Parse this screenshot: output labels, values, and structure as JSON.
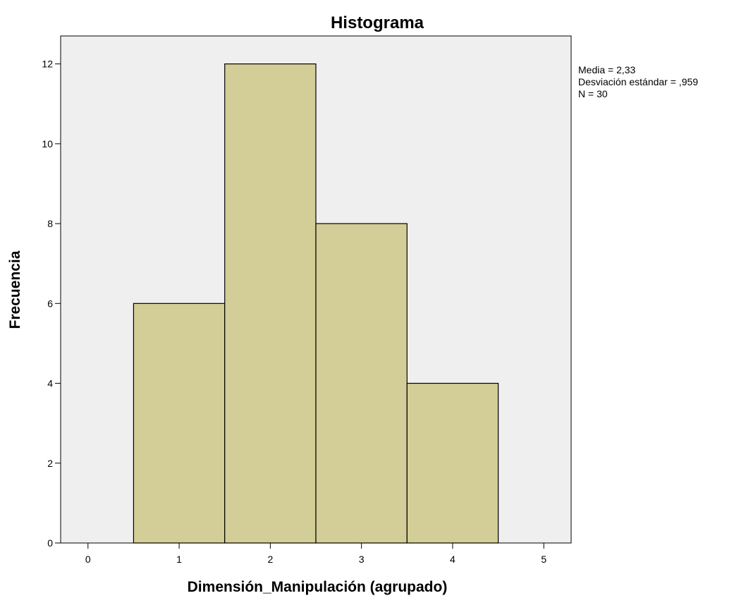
{
  "chart_data": {
    "type": "bar",
    "title": "Histograma",
    "xlabel": "Dimensión_Manipulación (agrupado)",
    "ylabel": "Frecuencia",
    "bins": [
      {
        "center": 1,
        "value": 6
      },
      {
        "center": 2,
        "value": 12
      },
      {
        "center": 3,
        "value": 8
      },
      {
        "center": 4,
        "value": 4
      }
    ],
    "bin_width": 1,
    "xlim": [
      -0.3,
      5.3
    ],
    "ylim": [
      0,
      12.7
    ],
    "xticks": [
      0,
      1,
      2,
      3,
      4,
      5
    ],
    "yticks": [
      0,
      2,
      4,
      6,
      8,
      10,
      12
    ],
    "grid": false,
    "colors": {
      "plot_background": "#efefef",
      "bar_fill": "#d3ce97",
      "bar_stroke": "#000000"
    }
  },
  "stats": {
    "mean_line": "Media = 2,33",
    "sd_line": "Desviación estándar = ,959",
    "n_line": "N = 30"
  }
}
